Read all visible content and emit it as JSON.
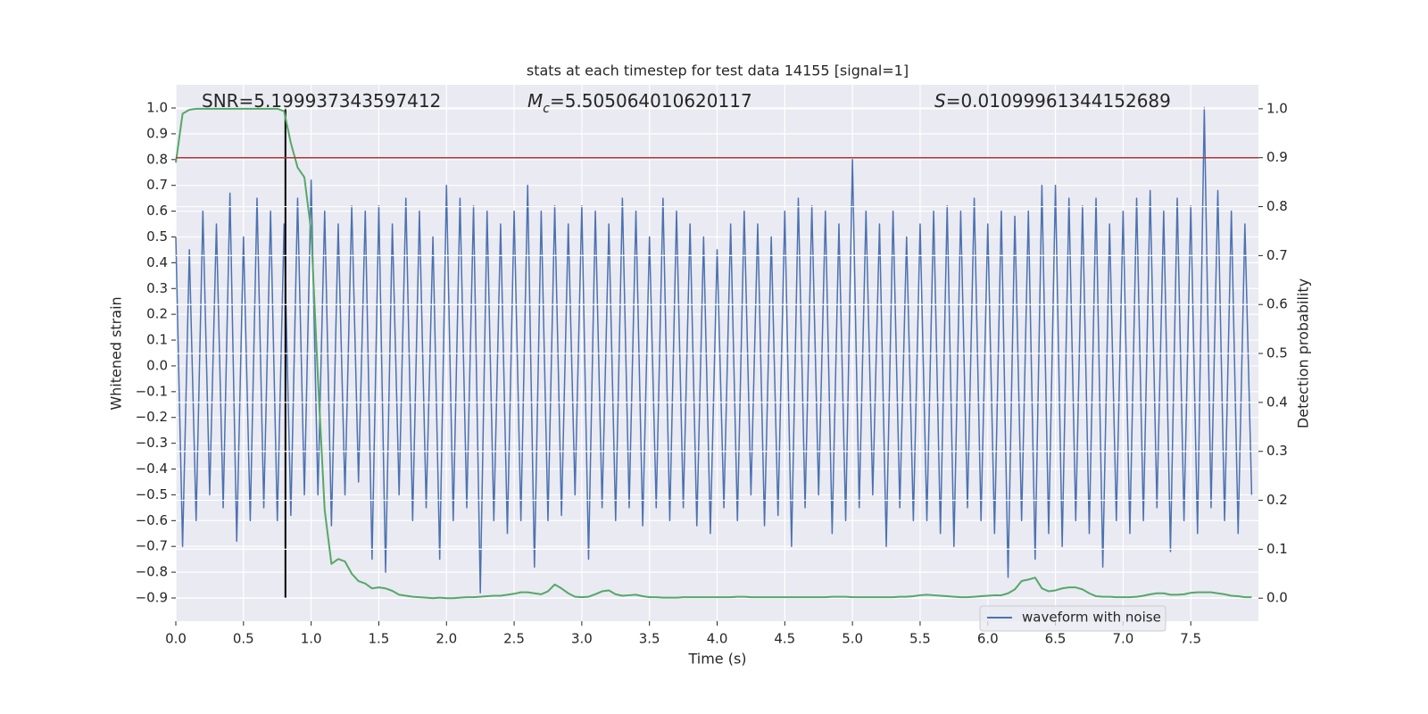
{
  "chart_data": {
    "type": "line",
    "title": "stats at each timestep for test data 14155 [signal=1]",
    "x_label": "Time (s)",
    "y_label": "Whitened strain",
    "y2_label": "Detection probability",
    "annotations": [
      {
        "text": "SNR=5.199937343597412"
      },
      {
        "symbol": "M",
        "sub": "c",
        "text": "=5.505064010620117"
      },
      {
        "symbol": "S",
        "text": "=0.01099961344152689"
      }
    ],
    "x": [
      0,
      0.05,
      0.1,
      0.15,
      0.2,
      0.25,
      0.3,
      0.35,
      0.4,
      0.45,
      0.5,
      0.55,
      0.6,
      0.65,
      0.7,
      0.75,
      0.8,
      0.85,
      0.9,
      0.95,
      1.0,
      1.05,
      1.1,
      1.15,
      1.2,
      1.25,
      1.3,
      1.35,
      1.4,
      1.45,
      1.5,
      1.55,
      1.6,
      1.65,
      1.7,
      1.75,
      1.8,
      1.85,
      1.9,
      1.95,
      2.0,
      2.05,
      2.1,
      2.15,
      2.2,
      2.25,
      2.3,
      2.35,
      2.4,
      2.45,
      2.5,
      2.55,
      2.6,
      2.65,
      2.7,
      2.75,
      2.8,
      2.85,
      2.9,
      2.95,
      3.0,
      3.05,
      3.1,
      3.15,
      3.2,
      3.25,
      3.3,
      3.35,
      3.4,
      3.45,
      3.5,
      3.55,
      3.6,
      3.65,
      3.7,
      3.75,
      3.8,
      3.85,
      3.9,
      3.95,
      4.0,
      4.05,
      4.1,
      4.15,
      4.2,
      4.25,
      4.3,
      4.35,
      4.4,
      4.45,
      4.5,
      4.55,
      4.6,
      4.65,
      4.7,
      4.75,
      4.8,
      4.85,
      4.9,
      4.95,
      5.0,
      5.05,
      5.1,
      5.15,
      5.2,
      5.25,
      5.3,
      5.35,
      5.4,
      5.45,
      5.5,
      5.55,
      5.6,
      5.65,
      5.7,
      5.75,
      5.8,
      5.85,
      5.9,
      5.95,
      6.0,
      6.05,
      6.1,
      6.15,
      6.2,
      6.25,
      6.3,
      6.35,
      6.4,
      6.45,
      6.5,
      6.55,
      6.6,
      6.65,
      6.7,
      6.75,
      6.8,
      6.85,
      6.9,
      6.95,
      7.0,
      7.05,
      7.1,
      7.15,
      7.2,
      7.25,
      7.3,
      7.35,
      7.4,
      7.45,
      7.5,
      7.55,
      7.6,
      7.65,
      7.7,
      7.75,
      7.8,
      7.85,
      7.9,
      7.95
    ],
    "series": [
      {
        "name": "waveform with noise",
        "color": "#4c72b0",
        "axis": "y",
        "values": [
          0.5,
          -0.7,
          0.45,
          -0.6,
          0.6,
          -0.5,
          0.55,
          -0.55,
          0.67,
          -0.68,
          0.5,
          -0.6,
          0.65,
          -0.55,
          0.6,
          -0.6,
          0.55,
          -0.58,
          0.65,
          -0.5,
          0.72,
          -0.5,
          0.6,
          -0.62,
          0.55,
          -0.5,
          0.62,
          -0.45,
          0.6,
          -0.75,
          0.62,
          -0.8,
          0.55,
          -0.5,
          0.65,
          -0.6,
          0.6,
          -0.55,
          0.5,
          -0.75,
          0.7,
          -0.6,
          0.65,
          -0.55,
          0.62,
          -0.88,
          0.6,
          -0.6,
          0.55,
          -0.65,
          0.6,
          -0.6,
          0.7,
          -0.78,
          0.6,
          -0.6,
          0.62,
          -0.58,
          0.55,
          -0.5,
          0.62,
          -0.75,
          0.6,
          -0.55,
          0.55,
          -0.6,
          0.65,
          -0.55,
          0.6,
          -0.62,
          0.5,
          -0.55,
          0.65,
          -0.6,
          0.6,
          -0.55,
          0.55,
          -0.62,
          0.5,
          -0.65,
          0.45,
          -0.55,
          0.55,
          -0.6,
          0.6,
          -0.5,
          0.55,
          -0.62,
          0.5,
          -0.58,
          0.6,
          -0.7,
          0.65,
          -0.55,
          0.62,
          -0.5,
          0.6,
          -0.65,
          0.55,
          -0.6,
          0.8,
          -0.55,
          0.6,
          -0.5,
          0.55,
          -0.7,
          0.6,
          -0.55,
          0.5,
          -0.6,
          0.55,
          -0.6,
          0.6,
          -0.65,
          0.62,
          -0.7,
          0.6,
          -0.55,
          0.65,
          -0.6,
          0.55,
          -0.65,
          0.6,
          -0.82,
          0.58,
          -0.6,
          0.6,
          -0.75,
          0.7,
          -0.65,
          0.7,
          -0.7,
          0.65,
          -0.6,
          0.62,
          -0.65,
          0.65,
          -0.78,
          0.55,
          -0.6,
          0.6,
          -0.65,
          0.65,
          -0.6,
          0.68,
          -0.55,
          0.6,
          -0.72,
          0.65,
          -0.6,
          0.62,
          -0.65,
          1.0,
          -0.55,
          0.68,
          -0.6,
          0.6,
          -0.65,
          0.55,
          -0.5
        ]
      },
      {
        "color": "#55a868",
        "axis": "y2",
        "values": [
          0.89,
          0.99,
          0.998,
          1.0,
          1.0,
          1.0,
          1.0,
          1.0,
          1.0,
          1.0,
          1.0,
          1.0,
          1.0,
          1.0,
          1.0,
          1.0,
          0.995,
          0.93,
          0.88,
          0.86,
          0.75,
          0.45,
          0.18,
          0.07,
          0.08,
          0.075,
          0.05,
          0.035,
          0.03,
          0.02,
          0.022,
          0.02,
          0.015,
          0.007,
          0.005,
          0.003,
          0.002,
          0.001,
          0.0,
          0.001,
          0.0,
          0.0,
          0.001,
          0.002,
          0.002,
          0.003,
          0.004,
          0.005,
          0.005,
          0.007,
          0.009,
          0.012,
          0.012,
          0.01,
          0.008,
          0.014,
          0.028,
          0.02,
          0.01,
          0.003,
          0.002,
          0.003,
          0.008,
          0.014,
          0.016,
          0.008,
          0.005,
          0.006,
          0.007,
          0.004,
          0.002,
          0.002,
          0.001,
          0.001,
          0.001,
          0.002,
          0.002,
          0.002,
          0.002,
          0.002,
          0.002,
          0.002,
          0.002,
          0.003,
          0.003,
          0.002,
          0.002,
          0.002,
          0.002,
          0.002,
          0.002,
          0.002,
          0.002,
          0.002,
          0.002,
          0.002,
          0.002,
          0.003,
          0.003,
          0.003,
          0.002,
          0.002,
          0.002,
          0.002,
          0.002,
          0.002,
          0.002,
          0.003,
          0.003,
          0.004,
          0.006,
          0.007,
          0.006,
          0.005,
          0.004,
          0.003,
          0.002,
          0.002,
          0.003,
          0.004,
          0.005,
          0.006,
          0.006,
          0.01,
          0.018,
          0.035,
          0.038,
          0.042,
          0.02,
          0.014,
          0.016,
          0.02,
          0.022,
          0.022,
          0.018,
          0.01,
          0.004,
          0.003,
          0.003,
          0.002,
          0.002,
          0.002,
          0.003,
          0.005,
          0.008,
          0.01,
          0.01,
          0.007,
          0.007,
          0.008,
          0.011,
          0.012,
          0.012,
          0.012,
          0.01,
          0.008,
          0.005,
          0.004,
          0.002,
          0.002
        ]
      }
    ],
    "hline": {
      "y2": 0.9,
      "color": "#b83232"
    },
    "vline": {
      "x": 0.81,
      "y": [
        -0.9,
        1.0
      ],
      "color": "#000000"
    },
    "xlim": [
      0,
      8.0
    ],
    "ylim": [
      -0.99,
      1.09
    ],
    "y2lim": [
      -0.047,
      1.049
    ],
    "xticks": [
      {
        "value": 0,
        "label": "0.0"
      },
      {
        "value": 0.5,
        "label": "0.5"
      },
      {
        "value": 1,
        "label": "1.0"
      },
      {
        "value": 1.5,
        "label": "1.5"
      },
      {
        "value": 2,
        "label": "2.0"
      },
      {
        "value": 2.5,
        "label": "2.5"
      },
      {
        "value": 3,
        "label": "3.0"
      },
      {
        "value": 3.5,
        "label": "3.5"
      },
      {
        "value": 4,
        "label": "4.0"
      },
      {
        "value": 4.5,
        "label": "4.5"
      },
      {
        "value": 5,
        "label": "5.0"
      },
      {
        "value": 5.5,
        "label": "5.5"
      },
      {
        "value": 6,
        "label": "6.0"
      },
      {
        "value": 6.5,
        "label": "6.5"
      },
      {
        "value": 7,
        "label": "7.0"
      },
      {
        "value": 7.5,
        "label": "7.5"
      }
    ],
    "yticks": [
      {
        "value": -0.9,
        "label": "−0.9"
      },
      {
        "value": -0.8,
        "label": "−0.8"
      },
      {
        "value": -0.7,
        "label": "−0.7"
      },
      {
        "value": -0.6,
        "label": "−0.6"
      },
      {
        "value": -0.5,
        "label": "−0.5"
      },
      {
        "value": -0.4,
        "label": "−0.4"
      },
      {
        "value": -0.3,
        "label": "−0.3"
      },
      {
        "value": -0.2,
        "label": "−0.2"
      },
      {
        "value": -0.1,
        "label": "−0.1"
      },
      {
        "value": 0,
        "label": "0.0"
      },
      {
        "value": 0.1,
        "label": "0.1"
      },
      {
        "value": 0.2,
        "label": "0.2"
      },
      {
        "value": 0.3,
        "label": "0.3"
      },
      {
        "value": 0.4,
        "label": "0.4"
      },
      {
        "value": 0.5,
        "label": "0.5"
      },
      {
        "value": 0.6,
        "label": "0.6"
      },
      {
        "value": 0.7,
        "label": "0.7"
      },
      {
        "value": 0.8,
        "label": "0.8"
      },
      {
        "value": 0.9,
        "label": "0.9"
      },
      {
        "value": 1,
        "label": "1.0"
      }
    ],
    "y2ticks": [
      {
        "value": 0,
        "label": "0.0"
      },
      {
        "value": 0.1,
        "label": "0.1"
      },
      {
        "value": 0.2,
        "label": "0.2"
      },
      {
        "value": 0.3,
        "label": "0.3"
      },
      {
        "value": 0.4,
        "label": "0.4"
      },
      {
        "value": 0.5,
        "label": "0.5"
      },
      {
        "value": 0.6,
        "label": "0.6"
      },
      {
        "value": 0.7,
        "label": "0.7"
      },
      {
        "value": 0.8,
        "label": "0.8"
      },
      {
        "value": 0.9,
        "label": "0.9"
      },
      {
        "value": 1,
        "label": "1.0"
      }
    ],
    "grid": true,
    "legend": "lower right"
  }
}
